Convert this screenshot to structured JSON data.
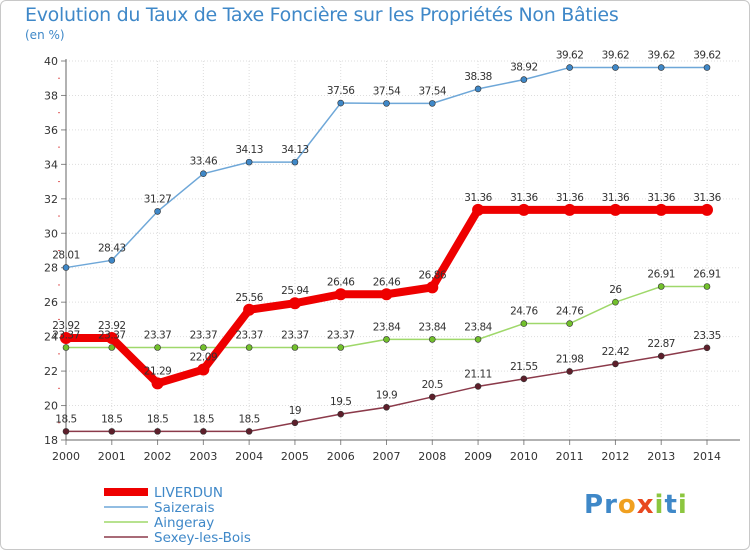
{
  "title": "Evolution du Taux de Taxe Foncière sur les Propriétés Non Bâties",
  "unit_label": "(en %)",
  "logo": {
    "letters": [
      "P",
      "r",
      "o",
      "x",
      "i",
      "t",
      "i"
    ],
    "colors": [
      "#3f88c8",
      "#3f88c8",
      "#f0a020",
      "#e84820",
      "#8cc63f",
      "#3f88c8",
      "#8cc63f"
    ]
  },
  "chart_data": {
    "type": "line",
    "x": [
      2000,
      2001,
      2002,
      2003,
      2004,
      2005,
      2006,
      2007,
      2008,
      2009,
      2010,
      2011,
      2012,
      2013,
      2014
    ],
    "ylim": [
      18,
      40
    ],
    "yticks": [
      18,
      20,
      22,
      24,
      26,
      28,
      30,
      32,
      34,
      36,
      38,
      40
    ],
    "grid": true,
    "legend_position": "bottom-left",
    "series": [
      {
        "name": "Saizerais",
        "color": "#6ea7d8",
        "marker_color": "#3f88c8",
        "values": [
          28.01,
          28.43,
          31.27,
          33.46,
          34.13,
          34.13,
          37.56,
          37.54,
          37.54,
          38.38,
          38.92,
          39.62,
          39.62,
          39.62,
          39.62
        ],
        "labels": [
          "28.01",
          "28.43",
          "31.27",
          "33.46",
          "34.13",
          "34.13",
          "37.56",
          "37.54",
          "37.54",
          "38.38",
          "38.92",
          "39.62",
          "39.62",
          "39.62",
          "39.62"
        ]
      },
      {
        "name": "Aingeray",
        "color": "#9fd86a",
        "marker_color": "#72c02c",
        "values": [
          23.37,
          23.37,
          23.37,
          23.37,
          23.37,
          23.37,
          23.37,
          23.84,
          23.84,
          23.84,
          24.76,
          24.76,
          26,
          26.91,
          26.91
        ],
        "labels": [
          "23.37",
          "23.37",
          "23.37",
          "23.37",
          "23.37",
          "23.37",
          "23.37",
          "23.84",
          "23.84",
          "23.84",
          "24.76",
          "24.76",
          "26",
          "26.91",
          "26.91"
        ]
      },
      {
        "name": "Sexey-les-Bois",
        "color": "#8b3a4a",
        "marker_color": "#5e1f2b",
        "values": [
          18.5,
          18.5,
          18.5,
          18.5,
          18.5,
          19,
          19.5,
          19.9,
          20.5,
          21.11,
          21.55,
          21.98,
          22.42,
          22.87,
          23.35
        ],
        "labels": [
          "18.5",
          "18.5",
          "18.5",
          "18.5",
          "18.5",
          "19",
          "19.5",
          "19.9",
          "20.5",
          "21.11",
          "21.55",
          "21.98",
          "22.42",
          "22.87",
          "23.35"
        ]
      },
      {
        "name": "LIVERDUN",
        "color": "#ee0000",
        "marker_color": "#ee0000",
        "highlight": true,
        "values": [
          23.92,
          23.92,
          21.29,
          22.09,
          25.56,
          25.94,
          26.46,
          26.46,
          26.86,
          31.36,
          31.36,
          31.36,
          31.36,
          31.36,
          31.36
        ],
        "labels": [
          "23.92",
          "23.92",
          "21.29",
          "22.09",
          "25.56",
          "25.94",
          "26.46",
          "26.46",
          "26.86",
          "31.36",
          "31.36",
          "31.36",
          "31.36",
          "31.36",
          "31.36"
        ]
      }
    ],
    "legend_order": [
      "LIVERDUN",
      "Saizerais",
      "Aingeray",
      "Sexey-les-Bois"
    ]
  }
}
